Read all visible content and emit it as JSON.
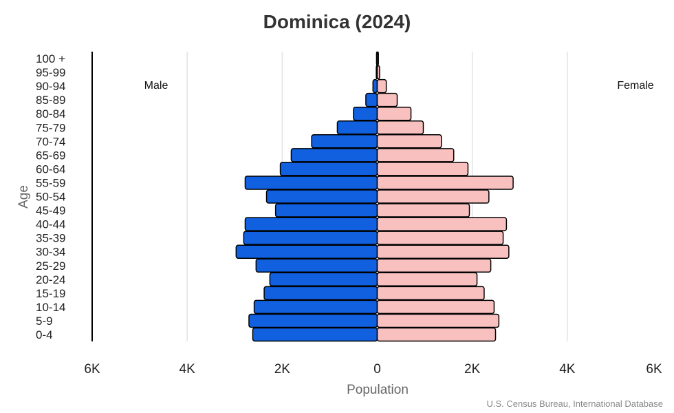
{
  "chart_data": {
    "type": "bar",
    "subtype": "population-pyramid",
    "title": "Dominica (2024)",
    "xlabel": "Population",
    "ylabel": "Age",
    "xlim": [
      -6000,
      6000
    ],
    "x_tick_labels": [
      "6K",
      "4K",
      "2K",
      "0",
      "2K",
      "4K",
      "6K"
    ],
    "x_tick_values": [
      -6000,
      -4000,
      -2000,
      0,
      2000,
      4000,
      6000
    ],
    "grid": true,
    "categories": [
      "0-4",
      "5-9",
      "10-14",
      "15-19",
      "20-24",
      "25-29",
      "30-34",
      "35-39",
      "40-44",
      "45-49",
      "50-54",
      "55-59",
      "60-64",
      "65-69",
      "70-74",
      "75-79",
      "80-84",
      "85-89",
      "90-94",
      "95-99",
      "100 +"
    ],
    "series": [
      {
        "name": "Male",
        "color": "#1060e0",
        "values": [
          2620,
          2700,
          2590,
          2380,
          2260,
          2550,
          2970,
          2810,
          2780,
          2140,
          2330,
          2780,
          2040,
          1810,
          1380,
          840,
          500,
          240,
          90,
          20,
          15
        ]
      },
      {
        "name": "Female",
        "color": "#f9c0c0",
        "values": [
          2490,
          2560,
          2460,
          2250,
          2100,
          2390,
          2770,
          2650,
          2720,
          1940,
          2350,
          2860,
          1910,
          1610,
          1350,
          970,
          710,
          420,
          190,
          50,
          25
        ]
      }
    ],
    "source": "U.S. Census Bureau, International Database"
  }
}
